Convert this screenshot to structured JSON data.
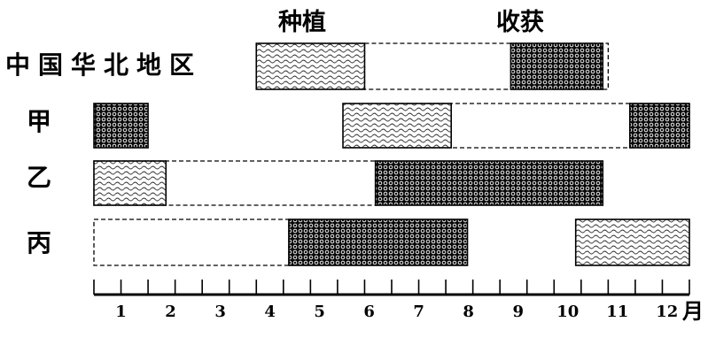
{
  "legend": {
    "planting": "种植",
    "harvest": "收获"
  },
  "rows": [
    {
      "label": "中国华北地区",
      "dashed": [
        [
          6,
          10.5
        ]
      ],
      "planting": [
        [
          4,
          6
        ]
      ],
      "harvest": [
        [
          8.7,
          10.4
        ]
      ]
    },
    {
      "label": "甲",
      "dashed": [
        [
          6.5,
          12
        ]
      ],
      "planting": [
        [
          5.6,
          7.6
        ]
      ],
      "harvest": [
        [
          1,
          2
        ],
        [
          10.9,
          12
        ]
      ]
    },
    {
      "label": "乙",
      "dashed": [
        [
          1,
          6.3
        ]
      ],
      "planting": [
        [
          1,
          2.33
        ]
      ],
      "harvest": [
        [
          6.2,
          10.4
        ]
      ]
    },
    {
      "label": "丙",
      "dashed": [
        [
          1,
          4.6
        ]
      ],
      "planting": [
        [
          9.9,
          12
        ]
      ],
      "harvest": [
        [
          4.6,
          7.9
        ]
      ]
    }
  ],
  "axis": {
    "months": [
      "1",
      "2",
      "3",
      "4",
      "5",
      "6",
      "7",
      "8",
      "9",
      "10",
      "11",
      "12"
    ],
    "unit": "月"
  }
}
